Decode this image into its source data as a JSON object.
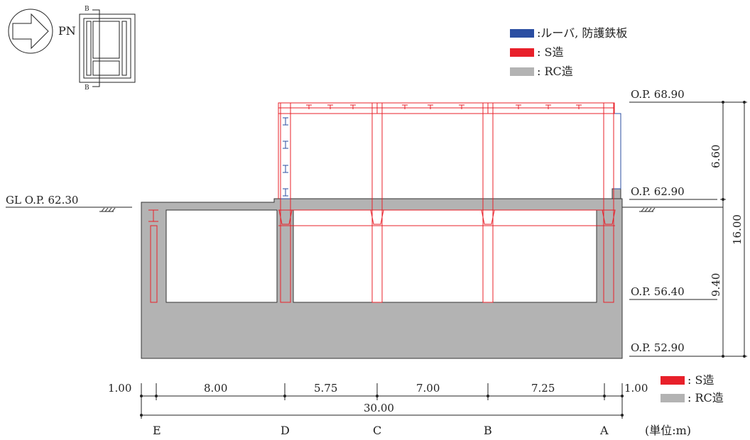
{
  "legend": {
    "louver": ":ルーバ, 防護鉄板",
    "steel": ": S造",
    "rc": ": RC造",
    "colors": {
      "louver": "#2b4ea2",
      "steel": "#e8202a",
      "rc": "#b3b3b3"
    }
  },
  "legend2": {
    "steel": ": S造",
    "rc": ": RC造"
  },
  "key_plan": {
    "north_label": "PN",
    "section_mark_top": "B",
    "section_mark_bottom": "B"
  },
  "ground": {
    "label": "GL O.P. 62.30"
  },
  "elevations": {
    "top": "O.P. 68.90",
    "roof": "O.P. 62.90",
    "middle": "O.P. 56.40",
    "bottom": "O.P. 52.90"
  },
  "vertical_dims": {
    "upper": "6.60",
    "lower": "9.40",
    "total": "16.00"
  },
  "horizontal_dims": {
    "spans": [
      "1.00",
      "8.00",
      "5.75",
      "7.00",
      "7.25",
      "1.00"
    ],
    "total": "30.00"
  },
  "grid_axes": [
    "E",
    "D",
    "C",
    "B",
    "A"
  ],
  "unit_note": "(単位:m)"
}
